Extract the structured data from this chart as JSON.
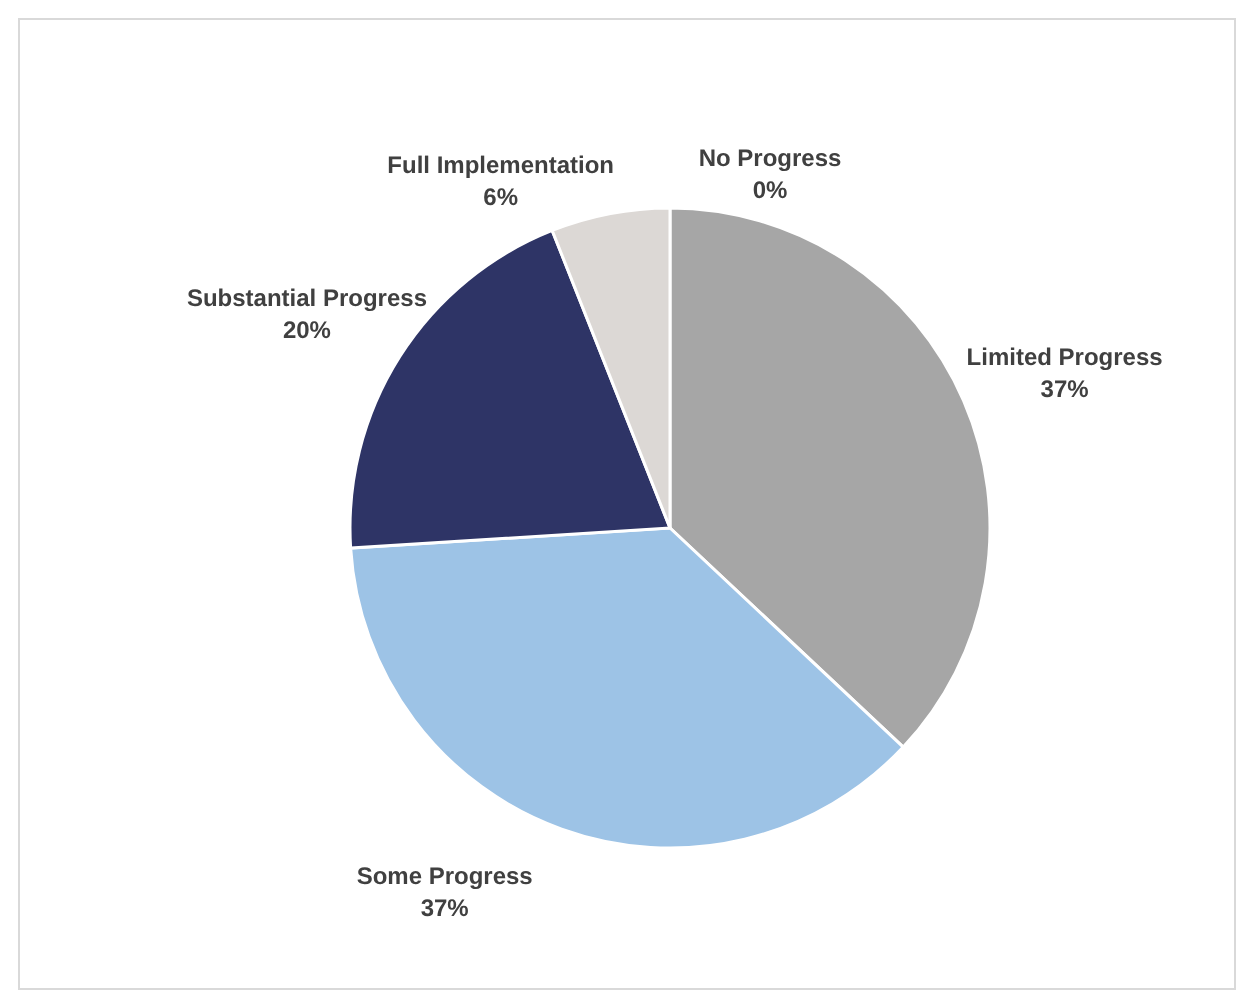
{
  "chart_data": {
    "type": "pie",
    "categories": [
      "No Progress",
      "Limited Progress",
      "Some Progress",
      "Substantial Progress",
      "Full Implementation"
    ],
    "values": [
      0,
      37,
      37,
      20,
      6
    ],
    "value_labels": [
      "0%",
      "37%",
      "37%",
      "20%",
      "6%"
    ],
    "colors": [
      "#e0dcd8",
      "#a6a6a6",
      "#9dc3e6",
      "#2e3466",
      "#dcd8d5"
    ]
  }
}
